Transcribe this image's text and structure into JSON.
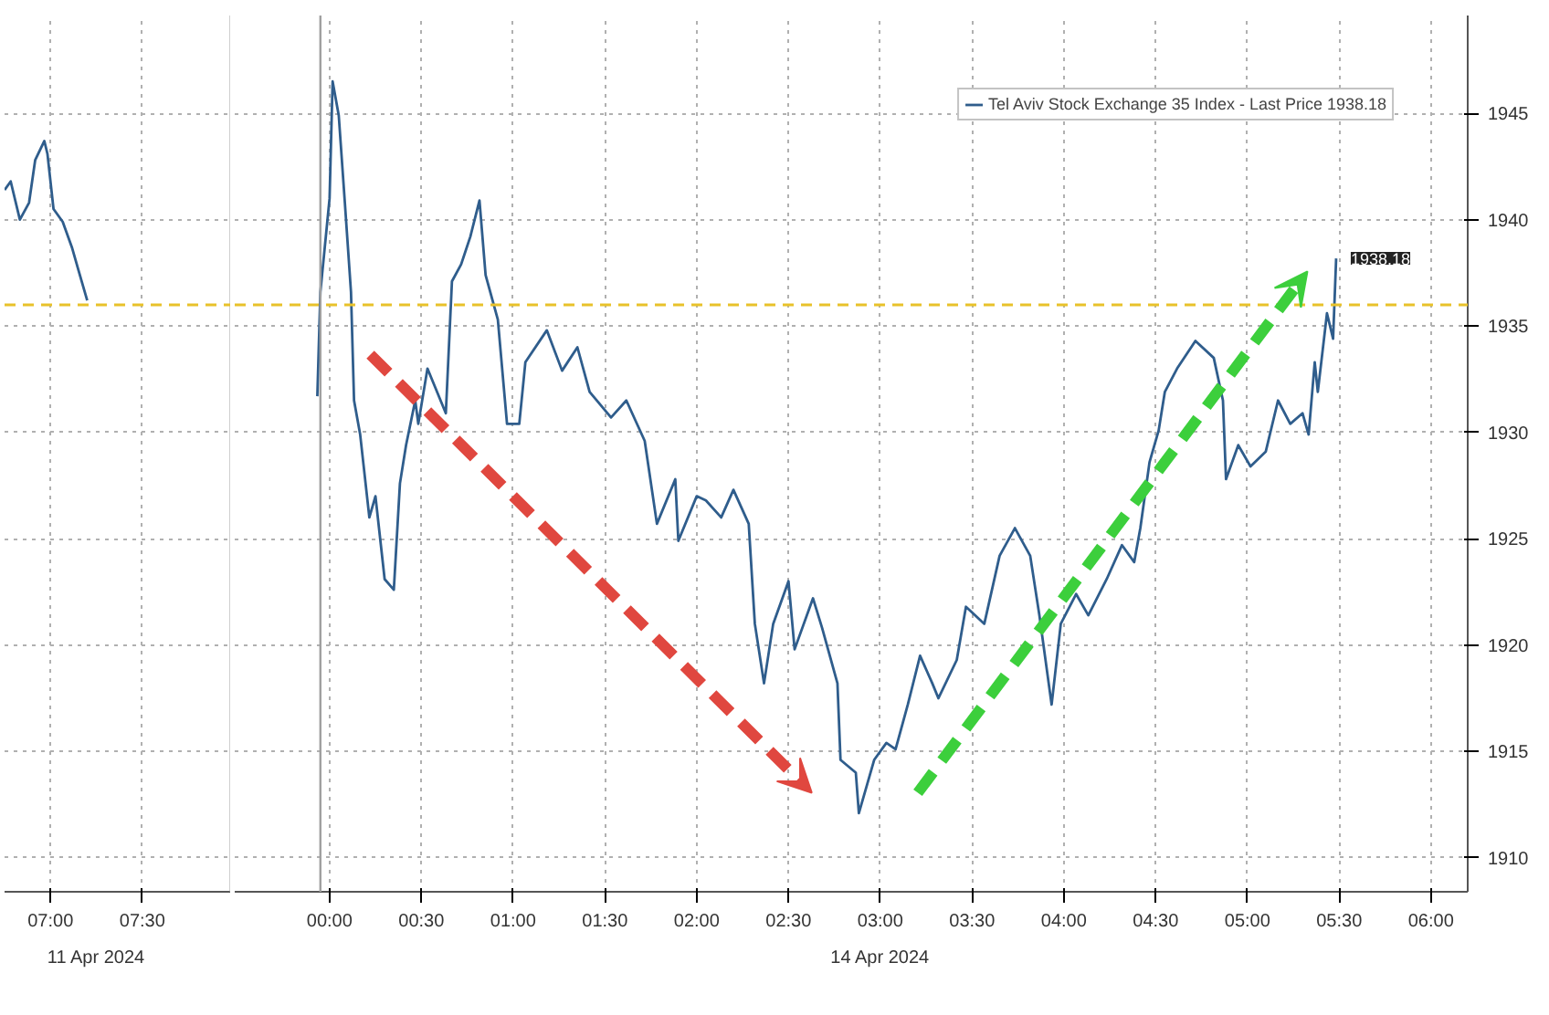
{
  "chart_data": [
    {
      "type": "line",
      "x": [
        "2024-04-11T06:45",
        "2024-04-11T06:47",
        "2024-04-11T06:50",
        "2024-04-11T06:53",
        "2024-04-11T06:55",
        "2024-04-11T06:58",
        "2024-04-11T06:59",
        "2024-04-11T07:01",
        "2024-04-11T07:04",
        "2024-04-11T07:07",
        "2024-04-11T07:09",
        "2024-04-11T07:12"
      ],
      "series": [
        {
          "color": "#2f5d8c",
          "values": [
            1941.4,
            1941.8,
            1940.0,
            1940.8,
            1942.8,
            1943.7,
            1943.1,
            1940.5,
            1939.9,
            1938.7,
            1937.7,
            1936.2
          ]
        }
      ],
      "xlim": [
        "2024-04-11T06:45",
        "2024-04-11T07:59"
      ],
      "xticks": [
        {
          "value": "2024-04-11T07:00",
          "label": "07:00"
        },
        {
          "value": "2024-04-11T07:30",
          "label": "07:30"
        }
      ],
      "ylim": [
        1908.4,
        1949.6
      ],
      "yticks": [
        1910,
        1915,
        1920,
        1925,
        1930,
        1935,
        1940,
        1945
      ],
      "tick_labels": "x",
      "ref_lines": [
        {
          "axis": "y",
          "value": 1936,
          "color": "#e8c22a",
          "line_style": "dashed"
        }
      ],
      "annotations": [
        "11 Apr 2024"
      ],
      "grid": true,
      "line_style": "solid",
      "marker": "none"
    },
    {
      "type": "line",
      "x": [
        "2024-04-13T23:56",
        "2024-04-13T23:57",
        "2024-04-14T00:00",
        "2024-04-14T00:01",
        "2024-04-14T00:03",
        "2024-04-14T00:05",
        "2024-04-14T00:07",
        "2024-04-14T00:08",
        "2024-04-14T00:10",
        "2024-04-14T00:13",
        "2024-04-14T00:15",
        "2024-04-14T00:18",
        "2024-04-14T00:21",
        "2024-04-14T00:23",
        "2024-04-14T00:25",
        "2024-04-14T00:28",
        "2024-04-14T00:29",
        "2024-04-14T00:32",
        "2024-04-14T00:38",
        "2024-04-14T00:40",
        "2024-04-14T00:43",
        "2024-04-14T00:46",
        "2024-04-14T00:49",
        "2024-04-14T00:51",
        "2024-04-14T00:55",
        "2024-04-14T00:58",
        "2024-04-14T01:02",
        "2024-04-14T01:04",
        "2024-04-14T01:11",
        "2024-04-14T01:16",
        "2024-04-14T01:21",
        "2024-04-14T01:25",
        "2024-04-14T01:32",
        "2024-04-14T01:37",
        "2024-04-14T01:43",
        "2024-04-14T01:47",
        "2024-04-14T01:53",
        "2024-04-14T01:54",
        "2024-04-14T02:00",
        "2024-04-14T02:03",
        "2024-04-14T02:08",
        "2024-04-14T02:12",
        "2024-04-14T02:17",
        "2024-04-14T02:19",
        "2024-04-14T02:22",
        "2024-04-14T02:25",
        "2024-04-14T02:30",
        "2024-04-14T02:32",
        "2024-04-14T02:38",
        "2024-04-14T02:41",
        "2024-04-14T02:46",
        "2024-04-14T02:47",
        "2024-04-14T02:52",
        "2024-04-14T02:53",
        "2024-04-14T02:58",
        "2024-04-14T03:02",
        "2024-04-14T03:05",
        "2024-04-14T03:09",
        "2024-04-14T03:13",
        "2024-04-14T03:17",
        "2024-04-14T03:19",
        "2024-04-14T03:25",
        "2024-04-14T03:28",
        "2024-04-14T03:34",
        "2024-04-14T03:39",
        "2024-04-14T03:44",
        "2024-04-14T03:49",
        "2024-04-14T03:52",
        "2024-04-14T03:56",
        "2024-04-14T03:59",
        "2024-04-14T04:04",
        "2024-04-14T04:08",
        "2024-04-14T04:14",
        "2024-04-14T04:19",
        "2024-04-14T04:23",
        "2024-04-14T04:25",
        "2024-04-14T04:28",
        "2024-04-14T04:31",
        "2024-04-14T04:33",
        "2024-04-14T04:37",
        "2024-04-14T04:43",
        "2024-04-14T04:49",
        "2024-04-14T04:52",
        "2024-04-14T04:53",
        "2024-04-14T04:57",
        "2024-04-14T05:01",
        "2024-04-14T05:06",
        "2024-04-14T05:10",
        "2024-04-14T05:14",
        "2024-04-14T05:18",
        "2024-04-14T05:20",
        "2024-04-14T05:22",
        "2024-04-14T05:23",
        "2024-04-14T05:26",
        "2024-04-14T05:28",
        "2024-04-14T05:29"
      ],
      "series": [
        {
          "name": "Tel Aviv Stock Exchange 35 Index - Last Price 1938.18",
          "color": "#2f5d8c",
          "values": [
            1931.7,
            1936.6,
            1941.0,
            1946.5,
            1944.9,
            1940.8,
            1936.6,
            1931.5,
            1929.9,
            1926.0,
            1927.0,
            1923.1,
            1922.6,
            1927.6,
            1929.4,
            1931.5,
            1930.4,
            1933.0,
            1930.9,
            1937.1,
            1937.9,
            1939.2,
            1940.9,
            1937.4,
            1935.3,
            1930.4,
            1930.4,
            1933.3,
            1934.8,
            1932.9,
            1934.0,
            1931.9,
            1930.7,
            1931.5,
            1929.6,
            1925.7,
            1927.8,
            1924.9,
            1927.0,
            1926.8,
            1926.0,
            1927.3,
            1925.7,
            1921.0,
            1918.2,
            1921.0,
            1923.0,
            1919.8,
            1922.2,
            1920.8,
            1918.2,
            1914.6,
            1914.0,
            1912.1,
            1914.6,
            1915.4,
            1915.1,
            1917.2,
            1919.5,
            1918.2,
            1917.5,
            1919.3,
            1921.8,
            1921.0,
            1924.2,
            1925.5,
            1924.2,
            1921.4,
            1917.2,
            1921.0,
            1922.4,
            1921.4,
            1923.1,
            1924.7,
            1923.9,
            1925.5,
            1928.6,
            1930.1,
            1931.9,
            1933.0,
            1934.3,
            1933.5,
            1931.5,
            1927.8,
            1929.4,
            1928.4,
            1929.1,
            1931.5,
            1930.4,
            1930.9,
            1929.9,
            1933.3,
            1931.9,
            1935.6,
            1934.4,
            1938.18
          ]
        }
      ],
      "xlim": [
        "2024-04-13T23:29",
        "2024-04-14T06:12"
      ],
      "xticks": [
        {
          "value": "2024-04-14T00:00",
          "label": "00:00"
        },
        {
          "value": "2024-04-14T00:30",
          "label": "00:30"
        },
        {
          "value": "2024-04-14T01:00",
          "label": "01:00"
        },
        {
          "value": "2024-04-14T01:30",
          "label": "01:30"
        },
        {
          "value": "2024-04-14T02:00",
          "label": "02:00"
        },
        {
          "value": "2024-04-14T02:30",
          "label": "02:30"
        },
        {
          "value": "2024-04-14T03:00",
          "label": "03:00"
        },
        {
          "value": "2024-04-14T03:30",
          "label": "03:30"
        },
        {
          "value": "2024-04-14T04:00",
          "label": "04:00"
        },
        {
          "value": "2024-04-14T04:30",
          "label": "04:30"
        },
        {
          "value": "2024-04-14T05:00",
          "label": "05:00"
        },
        {
          "value": "2024-04-14T05:30",
          "label": "05:30"
        },
        {
          "value": "2024-04-14T06:00",
          "label": "06:00"
        }
      ],
      "ylim": [
        1908.4,
        1949.6
      ],
      "yticks": [
        1910,
        1915,
        1920,
        1925,
        1930,
        1935,
        1940,
        1945
      ],
      "ref_lines": [
        {
          "axis": "y",
          "value": 1936,
          "color": "#e8c22a",
          "line_style": "dashed"
        },
        {
          "axis": "x",
          "value": "2024-04-13T23:57",
          "color": "#a0a0a0",
          "line_style": "solid"
        }
      ],
      "annotations": [
        "14 Apr 2024",
        {
          "text": "1938.18",
          "x": "2024-04-14T05:29",
          "y": 1938.18
        }
      ],
      "grid": true,
      "legend": "top right",
      "line_style": "solid",
      "marker": "none"
    }
  ]
}
